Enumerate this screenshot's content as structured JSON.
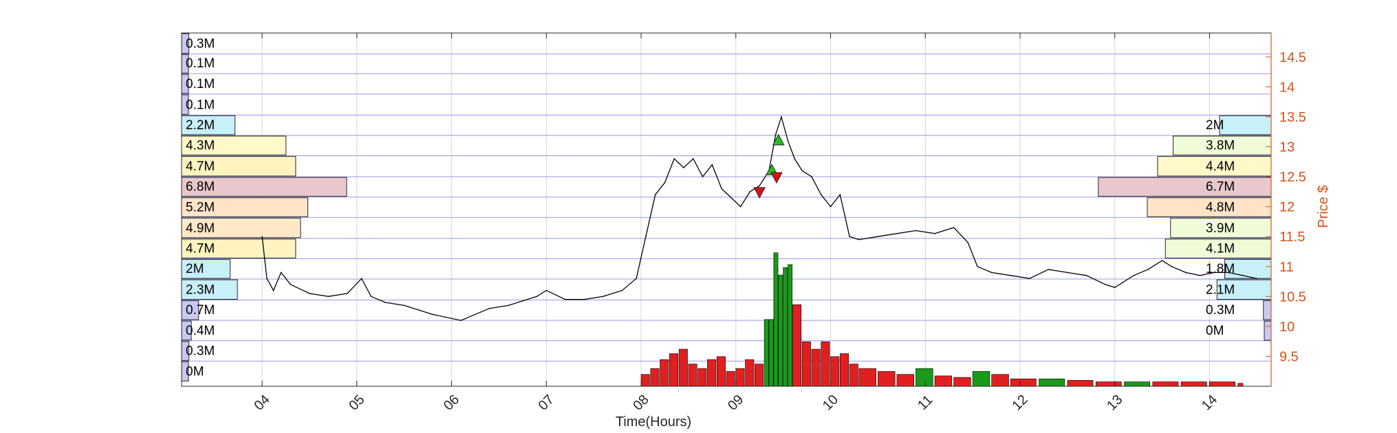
{
  "chart_data": {
    "type": "line",
    "xlabel": "Time(Hours)",
    "ylabel": "Price $",
    "x_ticks": [
      "04",
      "05",
      "06",
      "07",
      "08",
      "09",
      "10",
      "11",
      "12",
      "13",
      "14"
    ],
    "x_range_hours": [
      3.15,
      14.65
    ],
    "y_ticks": [
      "9.5",
      "10",
      "10.5",
      "11",
      "11.5",
      "12",
      "12.5",
      "13",
      "13.5",
      "14",
      "14.5"
    ],
    "ylim": [
      9.0,
      14.9
    ],
    "grid": true,
    "colors": {
      "price_line": "#000000",
      "right_axis": "#d95319",
      "grid": "#6a6ae0",
      "buy_marker": "#22c022",
      "sell_marker": "#e01010",
      "volume_up": "#1a9a1a",
      "volume_down": "#e02020"
    },
    "price_series": {
      "x": [
        4.0,
        4.05,
        4.12,
        4.2,
        4.3,
        4.5,
        4.7,
        4.9,
        5.05,
        5.15,
        5.3,
        5.5,
        5.8,
        6.1,
        6.4,
        6.6,
        6.9,
        7.0,
        7.2,
        7.4,
        7.6,
        7.8,
        7.95,
        8.05,
        8.15,
        8.25,
        8.35,
        8.45,
        8.55,
        8.65,
        8.75,
        8.85,
        8.95,
        9.05,
        9.15,
        9.25,
        9.35,
        9.42,
        9.48,
        9.55,
        9.62,
        9.7,
        9.8,
        9.9,
        10.0,
        10.1,
        10.2,
        10.3,
        10.5,
        10.7,
        10.9,
        11.1,
        11.3,
        11.45,
        11.55,
        11.7,
        11.9,
        12.1,
        12.3,
        12.5,
        12.7,
        12.9,
        13.0,
        13.1,
        13.2,
        13.35,
        13.5,
        13.6,
        13.75,
        13.9,
        14.05,
        14.2,
        14.35,
        14.5
      ],
      "y": [
        11.5,
        10.8,
        10.6,
        10.9,
        10.7,
        10.55,
        10.5,
        10.55,
        10.8,
        10.5,
        10.4,
        10.35,
        10.2,
        10.1,
        10.3,
        10.35,
        10.5,
        10.6,
        10.45,
        10.45,
        10.5,
        10.6,
        10.8,
        11.5,
        12.2,
        12.4,
        12.8,
        12.65,
        12.8,
        12.5,
        12.7,
        12.3,
        12.15,
        12.0,
        12.25,
        12.35,
        12.6,
        13.2,
        13.5,
        13.1,
        12.8,
        12.6,
        12.5,
        12.2,
        12.0,
        12.2,
        11.5,
        11.45,
        11.5,
        11.55,
        11.6,
        11.55,
        11.65,
        11.4,
        11.0,
        10.9,
        10.85,
        10.8,
        10.95,
        10.9,
        10.85,
        10.7,
        10.65,
        10.75,
        10.85,
        10.95,
        11.1,
        11.0,
        10.9,
        10.85,
        10.9,
        10.9,
        10.85,
        10.8
      ]
    },
    "signals": [
      {
        "type": "sell",
        "x": 9.25,
        "y": 12.25
      },
      {
        "type": "buy",
        "x": 9.38,
        "y": 12.6
      },
      {
        "type": "sell",
        "x": 9.43,
        "y": 12.5
      },
      {
        "type": "buy",
        "x": 9.45,
        "y": 13.1
      }
    ],
    "volume_profile_left": {
      "prices": [
        14.9,
        14.55,
        14.22,
        13.88,
        13.53,
        13.19,
        12.85,
        12.5,
        12.16,
        11.82,
        11.47,
        11.13,
        10.79,
        10.44,
        10.1,
        9.76,
        9.42
      ],
      "volumes_m": [
        0.3,
        0.1,
        0.1,
        0.1,
        2.2,
        4.3,
        4.7,
        6.8,
        5.2,
        4.9,
        4.7,
        2.0,
        2.3,
        0.7,
        0.4,
        0.3,
        0.0
      ],
      "labels": [
        "0.3M",
        "0.1M",
        "0.1M",
        "0.1M",
        "2.2M",
        "4.3M",
        "4.7M",
        "6.8M",
        "5.2M",
        "4.9M",
        "4.7M",
        "2M",
        "2.3M",
        "0.7M",
        "0.4M",
        "0.3M",
        "0M"
      ],
      "colors": [
        "#c8c8f0",
        "#c8c8f0",
        "#c8c8f0",
        "#c8c8f0",
        "#c8f0f8",
        "#fff8c8",
        "#fff4c0",
        "#e8c8cc",
        "#ffe4c8",
        "#ffe8c8",
        "#fff4c0",
        "#c8f0f8",
        "#c8f0f8",
        "#c8c8f0",
        "#c8c8f0",
        "#c8c8f0",
        "#c8c8f0"
      ]
    },
    "volume_profile_right": {
      "prices": [
        13.53,
        13.19,
        12.85,
        12.5,
        12.16,
        11.82,
        11.47,
        11.13,
        10.79,
        10.44,
        10.1
      ],
      "volumes_m": [
        2.0,
        3.8,
        4.4,
        6.7,
        4.8,
        3.9,
        4.1,
        1.8,
        2.1,
        0.3,
        0.0
      ],
      "labels": [
        "2M",
        "3.8M",
        "4.4M",
        "6.7M",
        "4.8M",
        "3.9M",
        "4.1M",
        "1.8M",
        "2.1M",
        "0.3M",
        "0M"
      ],
      "colors": [
        "#c8f0f8",
        "#f0fcd8",
        "#fff8c8",
        "#e8c8cc",
        "#ffe4c8",
        "#f0fcd8",
        "#f0fcd8",
        "#c8f0f8",
        "#c8f0f8",
        "#c8c8f0",
        "#c8c8f0"
      ]
    },
    "volume_bars": {
      "x": [
        8.0,
        8.1,
        8.2,
        8.3,
        8.4,
        8.5,
        8.6,
        8.7,
        8.8,
        8.9,
        9.0,
        9.1,
        9.2,
        9.3,
        9.35,
        9.4,
        9.45,
        9.5,
        9.55,
        9.6,
        9.7,
        9.8,
        9.9,
        10.0,
        10.1,
        10.2,
        10.3,
        10.5,
        10.7,
        10.9,
        11.1,
        11.3,
        11.5,
        11.7,
        11.9,
        12.2,
        12.5,
        12.8,
        13.1,
        13.4,
        13.7,
        14.0,
        14.3
      ],
      "heights_rel": [
        0.08,
        0.12,
        0.18,
        0.22,
        0.25,
        0.15,
        0.12,
        0.18,
        0.2,
        0.1,
        0.12,
        0.18,
        0.15,
        0.45,
        0.45,
        0.9,
        0.75,
        0.8,
        0.82,
        0.55,
        0.3,
        0.25,
        0.3,
        0.2,
        0.22,
        0.15,
        0.12,
        0.1,
        0.08,
        0.12,
        0.07,
        0.06,
        0.1,
        0.08,
        0.05,
        0.05,
        0.04,
        0.03,
        0.03,
        0.03,
        0.03,
        0.03,
        0.02
      ],
      "direction": [
        "d",
        "d",
        "d",
        "d",
        "d",
        "d",
        "d",
        "d",
        "d",
        "d",
        "d",
        "d",
        "d",
        "u",
        "u",
        "u",
        "u",
        "u",
        "u",
        "d",
        "d",
        "d",
        "d",
        "d",
        "d",
        "d",
        "d",
        "d",
        "d",
        "u",
        "d",
        "d",
        "u",
        "d",
        "d",
        "u",
        "d",
        "d",
        "u",
        "d",
        "d",
        "d",
        "d"
      ]
    }
  }
}
